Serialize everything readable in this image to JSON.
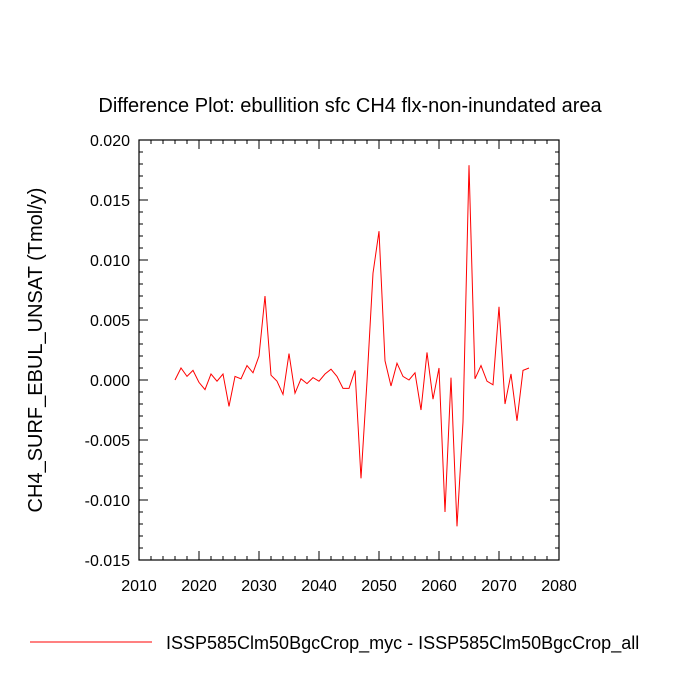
{
  "chart_data": {
    "type": "line",
    "title": "Difference Plot: ebullition sfc CH4 flx-non-inundated area",
    "ylabel": "CH4_SURF_EBUL_UNSAT  (Tmol/y)",
    "xlabel": "",
    "xlim": [
      2010,
      2080
    ],
    "ylim": [
      -0.015,
      0.02
    ],
    "xticks": [
      2010,
      2020,
      2030,
      2040,
      2050,
      2060,
      2070,
      2080
    ],
    "xtick_labels": [
      "2010",
      "2020",
      "2030",
      "2040",
      "2050",
      "2060",
      "2070",
      "2080"
    ],
    "yticks": [
      -0.015,
      -0.01,
      -0.005,
      0.0,
      0.005,
      0.01,
      0.015,
      0.02
    ],
    "ytick_labels": [
      "-0.015",
      "-0.010",
      "-0.005",
      "0.000",
      "0.005",
      "0.010",
      "0.015",
      "0.020"
    ],
    "grid": false,
    "legend_position": "bottom",
    "series": [
      {
        "name": "ISSP585Clm50BgcCrop_myc - ISSP585Clm50BgcCrop_all",
        "color": "#ff0000",
        "x": [
          2016,
          2017,
          2018,
          2019,
          2020,
          2021,
          2022,
          2023,
          2024,
          2025,
          2026,
          2027,
          2028,
          2029,
          2030,
          2031,
          2032,
          2033,
          2034,
          2035,
          2036,
          2037,
          2038,
          2039,
          2040,
          2041,
          2042,
          2043,
          2044,
          2045,
          2046,
          2047,
          2048,
          2049,
          2050,
          2051,
          2052,
          2053,
          2054,
          2055,
          2056,
          2057,
          2058,
          2059,
          2060,
          2061,
          2062,
          2063,
          2064,
          2065,
          2066,
          2067,
          2068,
          2069,
          2070,
          2071,
          2072,
          2073,
          2074,
          2075
        ],
        "values": [
          0.0,
          0.001,
          0.0003,
          0.0008,
          -0.0002,
          -0.0008,
          0.0005,
          -0.0001,
          0.0005,
          -0.0022,
          0.0003,
          0.0001,
          0.0012,
          0.0006,
          0.002,
          0.007,
          0.0004,
          -0.0001,
          -0.0012,
          0.0022,
          -0.0011,
          0.0001,
          -0.0003,
          0.0002,
          -0.0001,
          0.0005,
          0.0009,
          0.0003,
          -0.0007,
          -0.0007,
          0.0008,
          -0.0082,
          -0.0001,
          0.0089,
          0.0124,
          0.0016,
          -0.0005,
          0.0014,
          0.0003,
          0.0,
          0.0006,
          -0.0025,
          0.0023,
          -0.0016,
          0.001,
          -0.011,
          0.0002,
          -0.0122,
          -0.0035,
          0.0179,
          0.0001,
          0.0012,
          -0.0001,
          -0.0004,
          0.0061,
          -0.002,
          0.0005,
          -0.0034,
          0.0008,
          0.001
        ]
      }
    ]
  }
}
